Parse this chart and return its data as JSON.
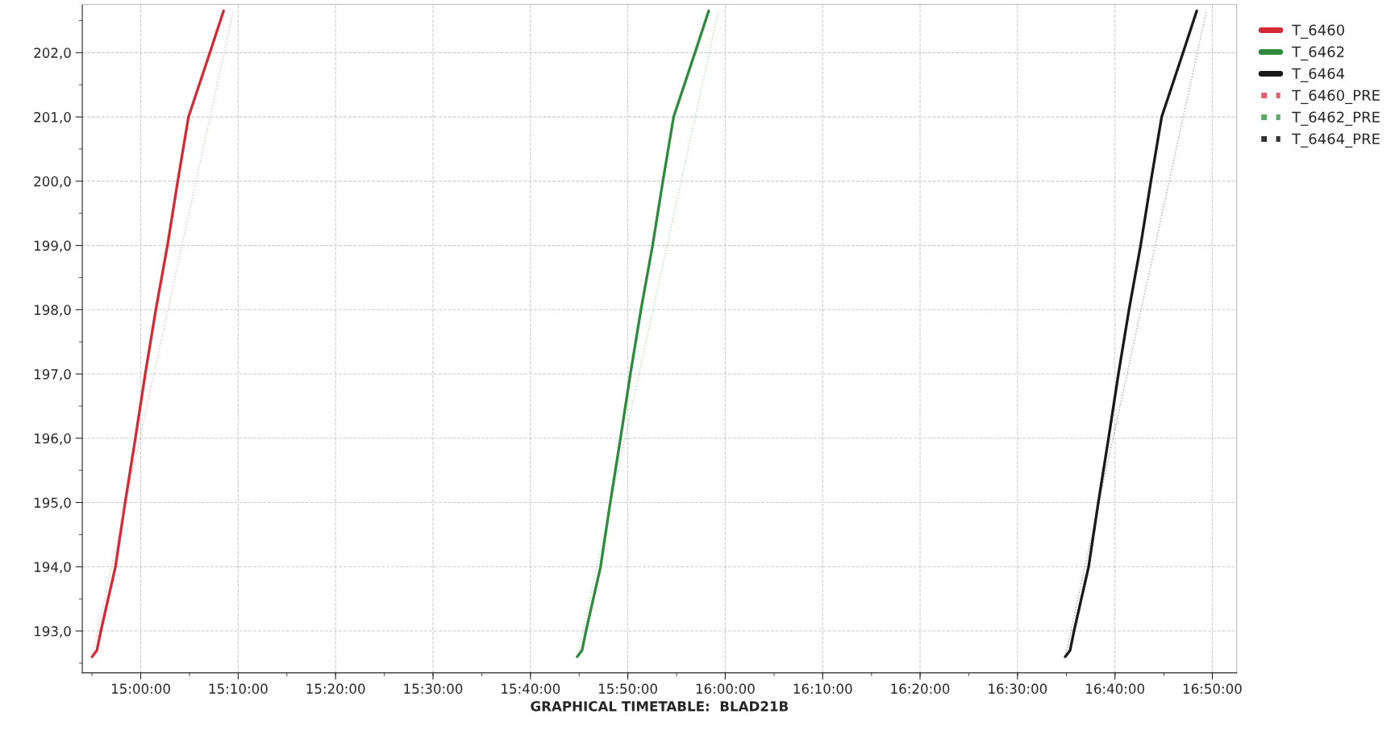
{
  "chart_data": {
    "type": "line",
    "xlabel": "GRAPHICAL TIMETABLE:  BLAD21B",
    "xlim": [
      14.9,
      16.875
    ],
    "ylim": [
      192.35,
      202.75
    ],
    "xticks": [
      {
        "value": 15,
        "label": "15:00:00"
      },
      {
        "value": 15.1667,
        "label": "15:10:00"
      },
      {
        "value": 15.3333,
        "label": "15:20:00"
      },
      {
        "value": 15.5,
        "label": "15:30:00"
      },
      {
        "value": 15.6667,
        "label": "15:40:00"
      },
      {
        "value": 15.8333,
        "label": "15:50:00"
      },
      {
        "value": 16,
        "label": "16:00:00"
      },
      {
        "value": 16.1667,
        "label": "16:10:00"
      },
      {
        "value": 16.3333,
        "label": "16:20:00"
      },
      {
        "value": 16.5,
        "label": "16:30:00"
      },
      {
        "value": 16.6667,
        "label": "16:40:00"
      },
      {
        "value": 16.8333,
        "label": "16:50:00"
      }
    ],
    "yticks": [
      {
        "value": 193,
        "label": "193,0"
      },
      {
        "value": 194,
        "label": "194,0"
      },
      {
        "value": 195,
        "label": "195,0"
      },
      {
        "value": 196,
        "label": "196,0"
      },
      {
        "value": 197,
        "label": "197,0"
      },
      {
        "value": 198,
        "label": "198,0"
      },
      {
        "value": 199,
        "label": "199,0"
      },
      {
        "value": 200,
        "label": "200,0"
      },
      {
        "value": 201,
        "label": "201,0"
      },
      {
        "value": 202,
        "label": "202,0"
      }
    ],
    "grid": true,
    "legend": "right",
    "marker": "none",
    "series": [
      {
        "name": "T_6460",
        "color": "#d42a36",
        "line_style": "solid",
        "x": [
          14.9167,
          14.925,
          14.9317,
          14.9567,
          14.9733,
          14.9908,
          15.0077,
          15.0258,
          15.0457,
          15.0633,
          15.0817,
          15.1183,
          15.1417
        ],
        "values": [
          192.6,
          192.7,
          193.0,
          194.0,
          195.0,
          196.0,
          197.0,
          198.0,
          199.0,
          200.0,
          201.0,
          202.0,
          202.65
        ]
      },
      {
        "name": "T_6462",
        "color": "#2e8b3e",
        "line_style": "solid",
        "x": [
          15.7467,
          15.755,
          15.7617,
          15.7867,
          15.8033,
          15.8208,
          15.8377,
          15.8558,
          15.8757,
          15.8933,
          15.9117,
          15.9483,
          15.9717
        ],
        "values": [
          192.6,
          192.7,
          193.0,
          194.0,
          195.0,
          196.0,
          197.0,
          198.0,
          199.0,
          200.0,
          201.0,
          202.0,
          202.65
        ]
      },
      {
        "name": "T_6464",
        "color": "#1a1a1a",
        "line_style": "solid",
        "x": [
          16.5817,
          16.59,
          16.5967,
          16.6217,
          16.6383,
          16.6558,
          16.6727,
          16.6908,
          16.7107,
          16.7283,
          16.7467,
          16.7833,
          16.8067
        ],
        "values": [
          192.6,
          192.7,
          193.0,
          194.0,
          195.0,
          196.0,
          197.0,
          198.0,
          199.0,
          200.0,
          201.0,
          202.0,
          202.65
        ]
      },
      {
        "name": "T_6460_PRE",
        "color": "#e06070",
        "line_style": "dotted",
        "x": [
          14.9167,
          15.1583
        ],
        "values": [
          192.6,
          202.65
        ]
      },
      {
        "name": "T_6462_PRE",
        "color": "#5aa868",
        "line_style": "dotted",
        "x": [
          15.7467,
          15.9883
        ],
        "values": [
          192.6,
          202.65
        ]
      },
      {
        "name": "T_6464_PRE",
        "color": "#333333",
        "line_style": "dotted",
        "x": [
          16.5817,
          16.8233
        ],
        "values": [
          192.6,
          202.65
        ]
      }
    ]
  }
}
